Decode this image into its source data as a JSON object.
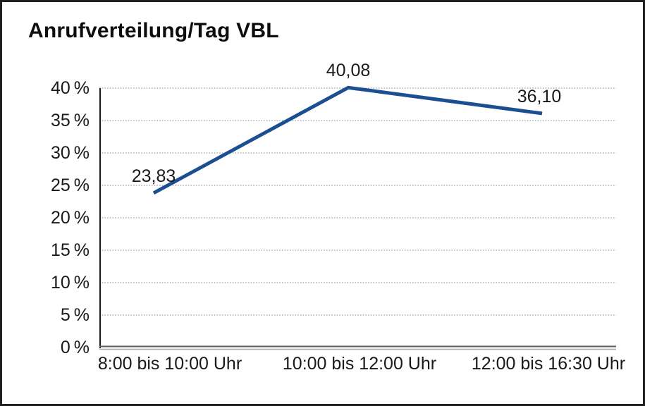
{
  "page": {
    "background": "#ffffff",
    "border_color": "#1f1f1f"
  },
  "chart_data": {
    "type": "line",
    "title": "Anrufverteilung/Tag VBL",
    "categories": [
      "8:00 bis 10:00 Uhr",
      "10:00 bis 12:00 Uhr",
      "12:00 bis 16:30 Uhr"
    ],
    "series": [
      {
        "values": [
          23.83,
          40.08,
          36.1
        ],
        "point_labels": [
          "23,83",
          "40,08",
          "36,10"
        ],
        "color": "#1b4f91"
      }
    ],
    "xlabel": "",
    "ylabel": "",
    "ylim": [
      0,
      40
    ],
    "y_tick_step": 5,
    "y_tick_labels": [
      "0 %",
      "5 %",
      "10 %",
      "15 %",
      "20 %",
      "25 %",
      "30 %",
      "35 %",
      "40 %"
    ],
    "grid": "horizontal-dotted",
    "legend_position": "none",
    "colors": {
      "text": "#1a1a1a",
      "gridline": "#8a8a8a",
      "y_axis": "#1a1a1a",
      "x_axis_top": "#595959",
      "x_axis_bottom": "#a6a6a6"
    }
  }
}
